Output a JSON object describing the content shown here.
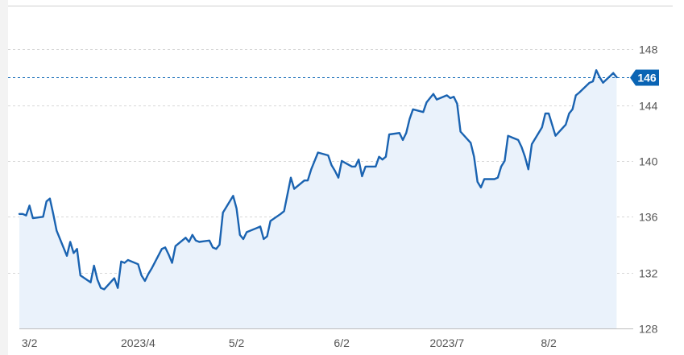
{
  "chart_data": {
    "type": "area",
    "title": "",
    "xlabel": "",
    "ylabel": "",
    "ylim": [
      128,
      149.8
    ],
    "y_ticks": [
      {
        "value": 128,
        "label": "128"
      },
      {
        "value": 132,
        "label": "132"
      },
      {
        "value": 136,
        "label": "136"
      },
      {
        "value": 140,
        "label": "140"
      },
      {
        "value": 144,
        "label": "144"
      },
      {
        "value": 148,
        "label": "148"
      }
    ],
    "x_range": [
      "2023-02-27",
      "2023-08-25"
    ],
    "x_ticks": [
      {
        "date": "2023-03-02",
        "label": "3/2"
      },
      {
        "date": "2023-04-03",
        "label": "2023/4"
      },
      {
        "date": "2023-05-02",
        "label": "5/2"
      },
      {
        "date": "2023-06-02",
        "label": "6/2"
      },
      {
        "date": "2023-07-03",
        "label": "2023/7"
      },
      {
        "date": "2023-08-02",
        "label": "8/2"
      }
    ],
    "grid": "horizontal-dashed",
    "current_price": {
      "value": 146,
      "label": "146",
      "color": "#0a64b4"
    },
    "colors": {
      "line": "#1a63b1",
      "fill": "#eaf2fb",
      "grid": "#d7d7d7"
    },
    "series": [
      {
        "points": [
          [
            "2023-02-27",
            136.2
          ],
          [
            "2023-02-28",
            136.2
          ],
          [
            "2023-03-01",
            136.1
          ],
          [
            "2023-03-02",
            136.8
          ],
          [
            "2023-03-03",
            135.9
          ],
          [
            "2023-03-06",
            136.0
          ],
          [
            "2023-03-07",
            137.1
          ],
          [
            "2023-03-08",
            137.3
          ],
          [
            "2023-03-09",
            136.2
          ],
          [
            "2023-03-10",
            135.0
          ],
          [
            "2023-03-13",
            133.2
          ],
          [
            "2023-03-14",
            134.2
          ],
          [
            "2023-03-15",
            133.4
          ],
          [
            "2023-03-16",
            133.7
          ],
          [
            "2023-03-17",
            131.8
          ],
          [
            "2023-03-20",
            131.3
          ],
          [
            "2023-03-21",
            132.5
          ],
          [
            "2023-03-22",
            131.5
          ],
          [
            "2023-03-23",
            130.9
          ],
          [
            "2023-03-24",
            130.8
          ],
          [
            "2023-03-27",
            131.6
          ],
          [
            "2023-03-28",
            130.9
          ],
          [
            "2023-03-29",
            132.8
          ],
          [
            "2023-03-30",
            132.7
          ],
          [
            "2023-03-31",
            132.9
          ],
          [
            "2023-04-03",
            132.6
          ],
          [
            "2023-04-04",
            131.8
          ],
          [
            "2023-04-05",
            131.4
          ],
          [
            "2023-04-06",
            131.9
          ],
          [
            "2023-04-07",
            132.3
          ],
          [
            "2023-04-10",
            133.7
          ],
          [
            "2023-04-11",
            133.8
          ],
          [
            "2023-04-12",
            133.3
          ],
          [
            "2023-04-13",
            132.7
          ],
          [
            "2023-04-14",
            133.9
          ],
          [
            "2023-04-17",
            134.5
          ],
          [
            "2023-04-18",
            134.2
          ],
          [
            "2023-04-19",
            134.7
          ],
          [
            "2023-04-20",
            134.3
          ],
          [
            "2023-04-21",
            134.2
          ],
          [
            "2023-04-24",
            134.3
          ],
          [
            "2023-04-25",
            133.8
          ],
          [
            "2023-04-26",
            133.7
          ],
          [
            "2023-04-27",
            134.0
          ],
          [
            "2023-04-28",
            136.3
          ],
          [
            "2023-05-01",
            137.5
          ],
          [
            "2023-05-02",
            136.6
          ],
          [
            "2023-05-03",
            134.7
          ],
          [
            "2023-05-04",
            134.4
          ],
          [
            "2023-05-05",
            134.9
          ],
          [
            "2023-05-08",
            135.2
          ],
          [
            "2023-05-09",
            135.3
          ],
          [
            "2023-05-10",
            134.4
          ],
          [
            "2023-05-11",
            134.6
          ],
          [
            "2023-05-12",
            135.7
          ],
          [
            "2023-05-15",
            136.2
          ],
          [
            "2023-05-16",
            136.4
          ],
          [
            "2023-05-17",
            137.6
          ],
          [
            "2023-05-18",
            138.8
          ],
          [
            "2023-05-19",
            138.0
          ],
          [
            "2023-05-22",
            138.6
          ],
          [
            "2023-05-23",
            138.6
          ],
          [
            "2023-05-24",
            139.4
          ],
          [
            "2023-05-25",
            140.0
          ],
          [
            "2023-05-26",
            140.6
          ],
          [
            "2023-05-29",
            140.4
          ],
          [
            "2023-05-30",
            139.7
          ],
          [
            "2023-05-31",
            139.3
          ],
          [
            "2023-06-01",
            138.8
          ],
          [
            "2023-06-02",
            140.0
          ],
          [
            "2023-06-05",
            139.6
          ],
          [
            "2023-06-06",
            139.6
          ],
          [
            "2023-06-07",
            140.1
          ],
          [
            "2023-06-08",
            138.9
          ],
          [
            "2023-06-09",
            139.6
          ],
          [
            "2023-06-12",
            139.6
          ],
          [
            "2023-06-13",
            140.3
          ],
          [
            "2023-06-14",
            140.1
          ],
          [
            "2023-06-15",
            140.3
          ],
          [
            "2023-06-16",
            141.9
          ],
          [
            "2023-06-19",
            142.0
          ],
          [
            "2023-06-20",
            141.5
          ],
          [
            "2023-06-21",
            142.0
          ],
          [
            "2023-06-22",
            143.0
          ],
          [
            "2023-06-23",
            143.7
          ],
          [
            "2023-06-26",
            143.5
          ],
          [
            "2023-06-27",
            144.2
          ],
          [
            "2023-06-28",
            144.5
          ],
          [
            "2023-06-29",
            144.8
          ],
          [
            "2023-06-30",
            144.4
          ],
          [
            "2023-07-03",
            144.7
          ],
          [
            "2023-07-04",
            144.5
          ],
          [
            "2023-07-05",
            144.6
          ],
          [
            "2023-07-06",
            144.1
          ],
          [
            "2023-07-07",
            142.1
          ],
          [
            "2023-07-10",
            141.3
          ],
          [
            "2023-07-11",
            140.3
          ],
          [
            "2023-07-12",
            138.5
          ],
          [
            "2023-07-13",
            138.1
          ],
          [
            "2023-07-14",
            138.7
          ],
          [
            "2023-07-17",
            138.7
          ],
          [
            "2023-07-18",
            138.8
          ],
          [
            "2023-07-19",
            139.6
          ],
          [
            "2023-07-20",
            140.0
          ],
          [
            "2023-07-21",
            141.8
          ],
          [
            "2023-07-24",
            141.5
          ],
          [
            "2023-07-25",
            141.0
          ],
          [
            "2023-07-26",
            140.3
          ],
          [
            "2023-07-27",
            139.4
          ],
          [
            "2023-07-28",
            141.2
          ],
          [
            "2023-07-31",
            142.4
          ],
          [
            "2023-08-01",
            143.4
          ],
          [
            "2023-08-02",
            143.4
          ],
          [
            "2023-08-03",
            142.6
          ],
          [
            "2023-08-04",
            141.8
          ],
          [
            "2023-08-07",
            142.6
          ],
          [
            "2023-08-08",
            143.4
          ],
          [
            "2023-08-09",
            143.7
          ],
          [
            "2023-08-10",
            144.7
          ],
          [
            "2023-08-11",
            144.9
          ],
          [
            "2023-08-14",
            145.6
          ],
          [
            "2023-08-15",
            145.7
          ],
          [
            "2023-08-16",
            146.5
          ],
          [
            "2023-08-17",
            146.0
          ],
          [
            "2023-08-18",
            145.6
          ],
          [
            "2023-08-21",
            146.3
          ],
          [
            "2023-08-22",
            146.0
          ]
        ]
      }
    ]
  }
}
